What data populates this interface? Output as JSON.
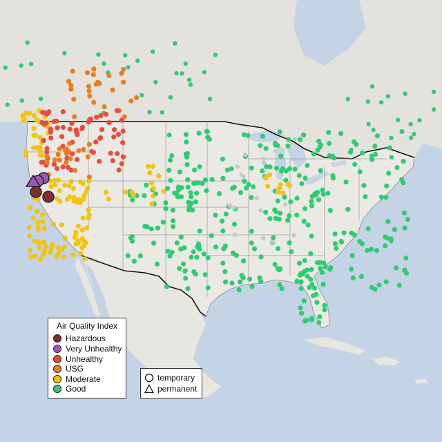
{
  "legend": {
    "title": "Air Quality Index",
    "categories": [
      {
        "label": "Hazardous",
        "color": "#7e3030"
      },
      {
        "label": "Very Unhealthy",
        "color": "#9b59b6"
      },
      {
        "label": "Unhealthy",
        "color": "#e74c3c"
      },
      {
        "label": "USG",
        "color": "#e67e22"
      },
      {
        "label": "Moderate",
        "color": "#f1c40f"
      },
      {
        "label": "Good",
        "color": "#2ecc71"
      }
    ]
  },
  "site_types": [
    {
      "label": "temporary",
      "shape": "circle"
    },
    {
      "label": "permanent",
      "shape": "triangle"
    }
  ],
  "colors": {
    "water": "#c5d3e6",
    "land": "#e9e7e1",
    "no_data_marker": "#c8c8c8"
  }
}
